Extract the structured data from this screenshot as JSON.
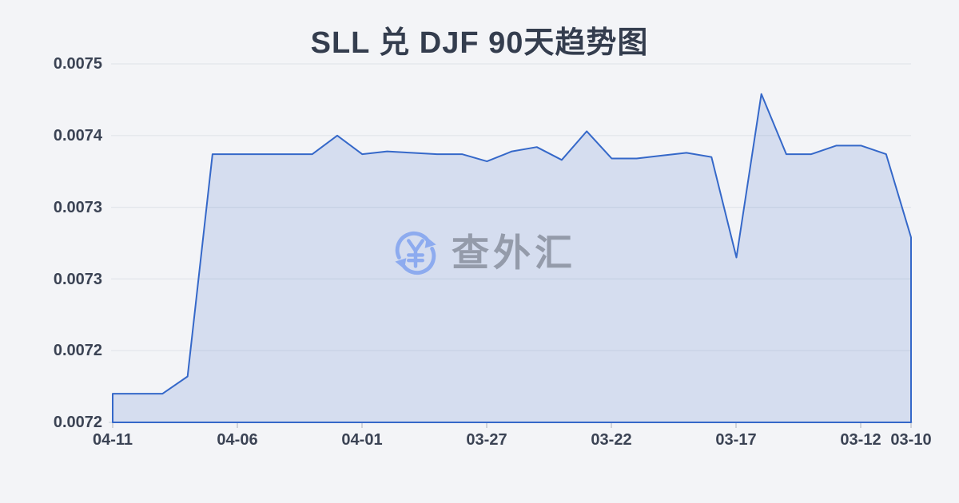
{
  "page": {
    "background": "#f3f4f7"
  },
  "watermark": {
    "text": "查外汇",
    "icon": "currency-sync-icon",
    "icon_color": "#8dabef",
    "text_color": "#949baa"
  },
  "chart_data": {
    "type": "area",
    "title": "SLL 兑 DJF 90天趋势图",
    "xlabel": "",
    "ylabel": "",
    "legend": "none",
    "grid": true,
    "x_reversed_dates": true,
    "x": [
      "04-11",
      "04-10",
      "04-09",
      "04-08",
      "04-07",
      "04-06",
      "04-05",
      "04-04",
      "04-03",
      "04-02",
      "04-01",
      "03-31",
      "03-30",
      "03-29",
      "03-28",
      "03-27",
      "03-26",
      "03-25",
      "03-24",
      "03-23",
      "03-22",
      "03-21",
      "03-20",
      "03-19",
      "03-18",
      "03-17",
      "03-16",
      "03-15",
      "03-14",
      "03-13",
      "03-12",
      "03-11",
      "03-10"
    ],
    "series": [
      {
        "name": "SLL/DJF",
        "values": [
          0.00722,
          0.00722,
          0.00722,
          0.007232,
          0.007387,
          0.007387,
          0.007387,
          0.007387,
          0.007387,
          0.0074,
          0.007387,
          0.007389,
          0.007388,
          0.007387,
          0.007387,
          0.007382,
          0.007389,
          0.007392,
          0.007383,
          0.007403,
          0.007384,
          0.007384,
          0.007386,
          0.007388,
          0.007385,
          0.007315,
          0.007429,
          0.007387,
          0.007387,
          0.007393,
          0.007393,
          0.007387,
          0.007329
        ]
      }
    ],
    "x_axis": {
      "tick_labels": [
        "04-11",
        "04-06",
        "04-01",
        "03-27",
        "03-22",
        "03-17",
        "03-12",
        "03-10"
      ]
    },
    "y_axis": {
      "min": 0.0072,
      "max": 0.00745,
      "tick_values_top_to_bottom": [
        0.00745,
        0.0074,
        0.00735,
        0.0073,
        0.00725,
        0.0072
      ],
      "tick_labels_top_to_bottom": [
        "0.0075",
        "0.0074",
        "0.0073",
        "0.0073",
        "0.0072",
        "0.0072"
      ]
    },
    "colors": {
      "line": "#3568c9",
      "fill": "rgba(53,104,201,0.16)",
      "gridline": "#e2e5ea",
      "axis_line": "#d5d8df",
      "text": "#3b4354"
    }
  }
}
